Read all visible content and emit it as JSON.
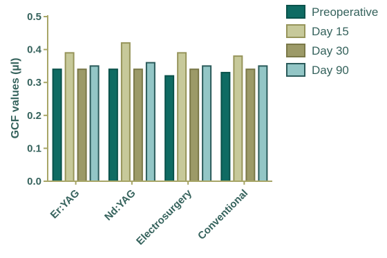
{
  "chart_data": {
    "type": "bar",
    "title": "",
    "xlabel": "",
    "ylabel": "GCF values (µl)",
    "ylim": [
      0,
      0.5
    ],
    "yticks": [
      "0.0",
      "0.1",
      "0.2",
      "0.3",
      "0.4",
      "0.5"
    ],
    "categories": [
      "Er:YAG",
      "Nd:YAG",
      "Electrosurgery",
      "Conventional"
    ],
    "legend_position": "top-right",
    "grid": false,
    "series": [
      {
        "name": "Preoperative",
        "values": [
          0.34,
          0.34,
          0.32,
          0.33
        ],
        "fill": "#0f6b63",
        "stroke": "#0a524b"
      },
      {
        "name": "Day 15",
        "values": [
          0.39,
          0.42,
          0.39,
          0.38
        ],
        "fill": "#c7c99a",
        "stroke": "#96945a"
      },
      {
        "name": "Day 30",
        "values": [
          0.34,
          0.34,
          0.34,
          0.34
        ],
        "fill": "#9c9a68",
        "stroke": "#7a7848"
      },
      {
        "name": "Day 90",
        "values": [
          0.35,
          0.36,
          0.35,
          0.35
        ],
        "fill": "#93c6c6",
        "stroke": "#2a5a5a"
      }
    ],
    "axis_color": "#a7a566",
    "text_color": "#35625c"
  }
}
